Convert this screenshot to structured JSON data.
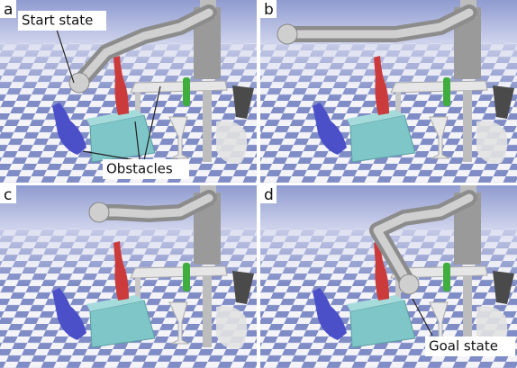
{
  "panels": [
    {
      "label": "a",
      "annotations": [
        "Start state",
        "Obstacles"
      ]
    },
    {
      "label": "b"
    },
    {
      "label": "c"
    },
    {
      "label": "d",
      "annotations": [
        "Goal state"
      ]
    }
  ]
}
